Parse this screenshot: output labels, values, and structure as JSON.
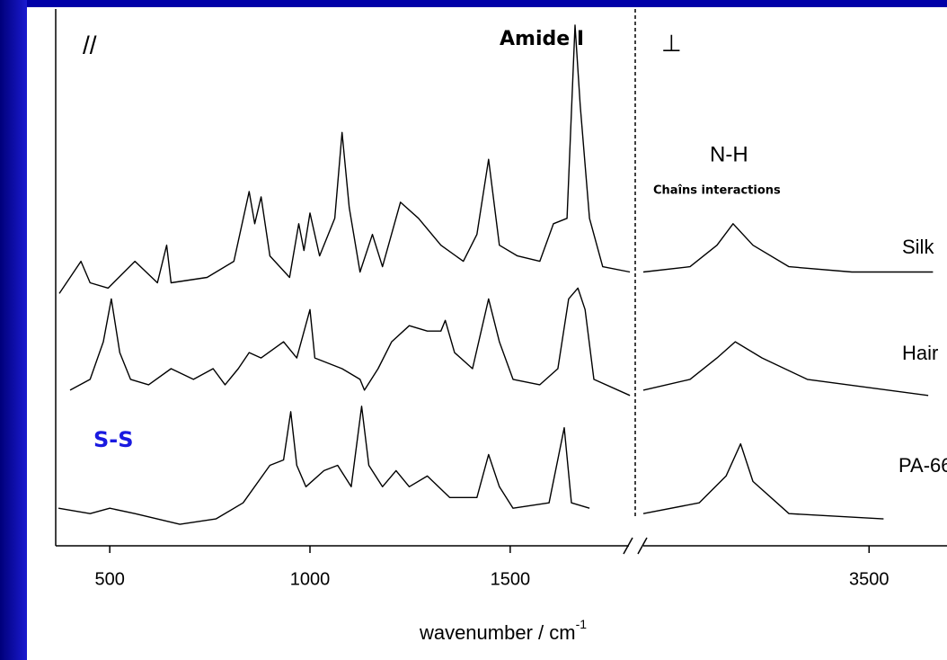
{
  "chart_data": {
    "type": "line",
    "annotations": [
      "//",
      "Amide I",
      "⊥",
      "N-H",
      "Chaîns interactions",
      "S-S"
    ],
    "xlabel": "wavenumber / cm",
    "xlabel_sup": "-1",
    "xlim": [
      365,
      1810
    ],
    "x2lim": [
      3080,
      3645
    ],
    "xticks": [
      500,
      1000,
      1500
    ],
    "x2ticks": [
      3500
    ],
    "ylim": [
      0,
      100
    ],
    "axis_break": true,
    "series": [
      {
        "name": "Silk",
        "color": "#000000",
        "x": [
          374,
          428,
          451,
          496,
          563,
          619,
          642,
          653,
          743,
          810,
          848,
          862,
          878,
          900,
          949,
          972,
          985,
          1000,
          1024,
          1062,
          1080,
          1098,
          1125,
          1156,
          1181,
          1226,
          1271,
          1327,
          1383,
          1417,
          1446,
          1473,
          1518,
          1574,
          1608,
          1642,
          1662,
          1675,
          1698,
          1731,
          1799,
          null,
          3080,
          3167,
          3217,
          3247,
          3284,
          3351,
          3468,
          3619
        ],
        "values": [
          47,
          53,
          49,
          48,
          53,
          49,
          56,
          49,
          50,
          53,
          66,
          60,
          65,
          54,
          50,
          60,
          55,
          62,
          54,
          61,
          77,
          63,
          51,
          58,
          52,
          64,
          61,
          56,
          53,
          58,
          72,
          56,
          54,
          53,
          60,
          61,
          97,
          82,
          61,
          52,
          51,
          null,
          51,
          52,
          56,
          60,
          56,
          52,
          51,
          51
        ]
      },
      {
        "name": "Hair",
        "color": "#000000",
        "x": [
          401,
          451,
          484,
          504,
          525,
          552,
          597,
          653,
          709,
          758,
          788,
          821,
          848,
          878,
          934,
          967,
          1000,
          1012,
          1080,
          1125,
          1136,
          1170,
          1204,
          1248,
          1293,
          1327,
          1338,
          1361,
          1406,
          1446,
          1473,
          1507,
          1574,
          1619,
          1646,
          1669,
          1687,
          1709,
          1799,
          null,
          3080,
          3167,
          3217,
          3251,
          3301,
          3385,
          3610
        ],
        "values": [
          29,
          31,
          38,
          46,
          36,
          31,
          30,
          33,
          31,
          33,
          30,
          33,
          36,
          35,
          38,
          35,
          44,
          35,
          33,
          31,
          29,
          33,
          38,
          41,
          40,
          40,
          42,
          36,
          33,
          46,
          38,
          31,
          30,
          33,
          46,
          48,
          44,
          31,
          28,
          null,
          29,
          31,
          35,
          38,
          35,
          31,
          28
        ]
      },
      {
        "name": "PA-66",
        "color": "#000000",
        "x": [
          372,
          451,
          500,
          563,
          675,
          765,
          833,
          900,
          934,
          952,
          967,
          990,
          1035,
          1069,
          1103,
          1129,
          1147,
          1181,
          1215,
          1248,
          1293,
          1349,
          1417,
          1446,
          1473,
          1507,
          1597,
          1635,
          1653,
          1698,
          null,
          3080,
          3184,
          3234,
          3261,
          3284,
          3351,
          3527
        ],
        "values": [
          7,
          6,
          7,
          6,
          4,
          5,
          8,
          15,
          16,
          25,
          15,
          11,
          14,
          15,
          11,
          26,
          15,
          11,
          14,
          11,
          13,
          9,
          9,
          17,
          11,
          7,
          8,
          22,
          8,
          7,
          null,
          6,
          8,
          13,
          19,
          12,
          6,
          5
        ]
      }
    ]
  }
}
